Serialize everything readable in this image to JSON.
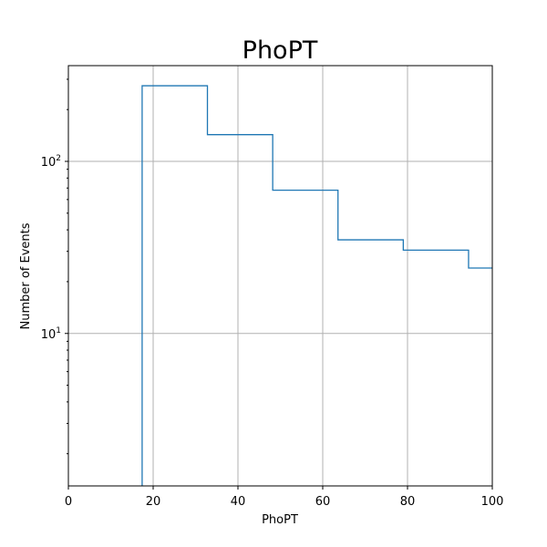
{
  "chart_data": {
    "type": "histogram",
    "title": "PhoPT",
    "xlabel": "PhoPT",
    "ylabel": "Number of Events",
    "xlim": [
      0,
      100
    ],
    "ylim": [
      1.3,
      360
    ],
    "yscale": "log",
    "grid": true,
    "line_color": "#1f77b4",
    "bins": [
      {
        "x0": 17.4,
        "x1": 32.8,
        "y": 275
      },
      {
        "x0": 32.8,
        "x1": 48.2,
        "y": 143
      },
      {
        "x0": 48.2,
        "x1": 63.6,
        "y": 68
      },
      {
        "x0": 63.6,
        "x1": 79.0,
        "y": 35
      },
      {
        "x0": 79.0,
        "x1": 94.4,
        "y": 30.5
      },
      {
        "x0": 94.4,
        "x1": 100,
        "y": 24
      }
    ],
    "xticks": [
      0,
      20,
      40,
      60,
      80,
      100
    ],
    "xtick_labels": [
      "0",
      "20",
      "40",
      "60",
      "80",
      "100"
    ],
    "yticks": [
      10,
      100
    ],
    "ytick_labels": [
      {
        "base": "10",
        "exp": "1"
      },
      {
        "base": "10",
        "exp": "2"
      }
    ]
  }
}
